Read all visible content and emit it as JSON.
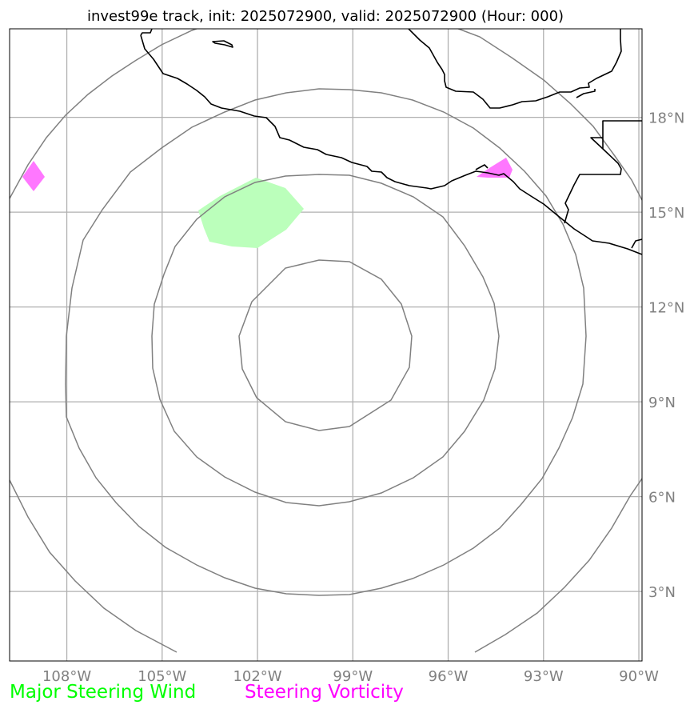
{
  "title": "invest99e track, init: 2025072900, valid: 2025072900 (Hour: 000)",
  "map": {
    "lon_range": [
      -109.8,
      -89.9
    ],
    "lat_range": [
      0.8,
      20.8
    ],
    "center": {
      "lon": -100.0,
      "lat": 10.8
    },
    "lon_ticks": [
      {
        "value": -108,
        "label": "108°W"
      },
      {
        "value": -105,
        "label": "105°W"
      },
      {
        "value": -102,
        "label": "102°W"
      },
      {
        "value": -99,
        "label": "99°W"
      },
      {
        "value": -96,
        "label": "96°W"
      },
      {
        "value": -93,
        "label": "93°W"
      },
      {
        "value": -90,
        "label": "90°W"
      }
    ],
    "lat_ticks": [
      {
        "value": 18,
        "label": "18°N"
      },
      {
        "value": 15,
        "label": "15°N"
      },
      {
        "value": 12,
        "label": "12°N"
      },
      {
        "value": 9,
        "label": "9°N"
      },
      {
        "value": 6,
        "label": "6°N"
      },
      {
        "value": 3,
        "label": "3°N"
      }
    ],
    "gridlines": true,
    "colors": {
      "grid": "#b0b0b0",
      "rings": "#808080",
      "coast": "#000000",
      "wind": "#00ff00",
      "wind_fill": "#bbffbb",
      "vorticity": "#ff00ff",
      "vorticity_fill": "#ff77ff"
    }
  },
  "legend": {
    "wind_label": "Major Steering Wind",
    "vorticity_label": "Steering Vorticity"
  }
}
